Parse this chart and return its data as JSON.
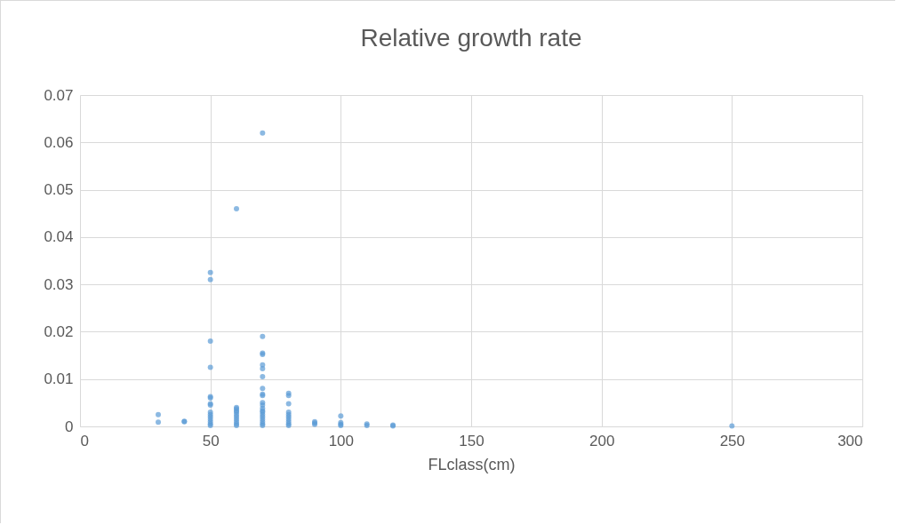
{
  "chart_data": {
    "type": "scatter",
    "title": "Relative growth rate",
    "xlabel": "FLclass(cm)",
    "x": [
      30,
      30,
      40,
      40,
      50,
      50,
      50,
      50,
      50,
      50,
      50,
      50,
      50,
      50,
      50,
      50,
      50,
      50,
      50,
      60,
      60,
      60,
      60,
      60,
      60,
      60,
      60,
      60,
      60,
      60,
      70,
      70,
      70,
      70,
      70,
      70,
      70,
      70,
      70,
      70,
      70,
      70,
      70,
      70,
      70,
      70,
      70,
      70,
      70,
      70,
      70,
      80,
      80,
      80,
      80,
      80,
      80,
      80,
      80,
      80,
      80,
      90,
      90,
      90,
      100,
      100,
      100,
      100,
      110,
      110,
      120,
      120,
      250
    ],
    "series": [
      {
        "color": "#5b9bd5",
        "values": [
          0.0025,
          0.0009,
          0.0011,
          0.001,
          0.0325,
          0.031,
          0.018,
          0.0125,
          0.0063,
          0.006,
          0.0048,
          0.0045,
          0.003,
          0.0025,
          0.002,
          0.0015,
          0.001,
          0.0005,
          0.0002,
          0.046,
          0.004,
          0.0037,
          0.0033,
          0.003,
          0.0025,
          0.002,
          0.0015,
          0.001,
          0.0005,
          0.0002,
          0.062,
          0.019,
          0.0155,
          0.0152,
          0.013,
          0.0122,
          0.0105,
          0.008,
          0.0068,
          0.0065,
          0.005,
          0.0045,
          0.0038,
          0.0033,
          0.003,
          0.0025,
          0.002,
          0.0015,
          0.001,
          0.0005,
          0.0002,
          0.007,
          0.0065,
          0.0048,
          0.003,
          0.0025,
          0.002,
          0.0015,
          0.001,
          0.0005,
          0.0002,
          0.001,
          0.0007,
          0.0004,
          0.0022,
          0.0008,
          0.0004,
          0.0002,
          0.0005,
          0.0002,
          0.0003,
          0.0001,
          0.0001
        ]
      }
    ],
    "xlim": [
      0,
      300
    ],
    "xticks": [
      0,
      50,
      100,
      150,
      200,
      250,
      300
    ],
    "ylim": [
      0,
      0.07
    ],
    "yticks": [
      0,
      0.01,
      0.02,
      0.03,
      0.04,
      0.05,
      0.06,
      0.07
    ],
    "grid": true,
    "marker": "circle"
  }
}
